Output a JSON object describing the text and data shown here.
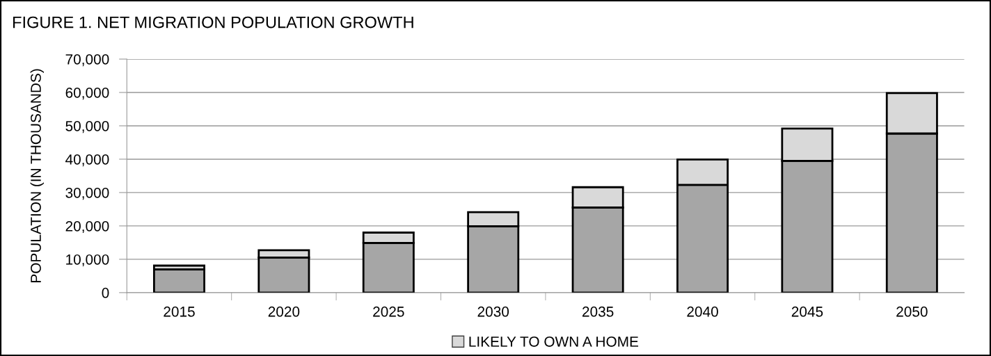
{
  "chart_data": {
    "type": "bar",
    "title": "FIGURE 1. NET MIGRATION POPULATION GROWTH",
    "ylabel": "POPULATION (IN THOUSANDS)",
    "categories": [
      "2015",
      "2020",
      "2025",
      "2030",
      "2035",
      "2040",
      "2045",
      "2050"
    ],
    "stacked": true,
    "series": [
      {
        "color": "#a6a6a6",
        "values": [
          7000,
          10500,
          14900,
          19900,
          25500,
          32300,
          39500,
          47700
        ]
      },
      {
        "name": "LIKELY TO OWN A HOME",
        "color": "#d9d9d9",
        "values": [
          1100,
          2200,
          3100,
          4200,
          6100,
          7600,
          9700,
          12100
        ]
      }
    ],
    "ylim": [
      0,
      70000
    ],
    "yticks": [
      {
        "value": 0,
        "label": "0"
      },
      {
        "value": 10000,
        "label": "10,000"
      },
      {
        "value": 20000,
        "label": "20,000"
      },
      {
        "value": 30000,
        "label": "30,000"
      },
      {
        "value": 40000,
        "label": "40,000"
      },
      {
        "value": 50000,
        "label": "50,000"
      },
      {
        "value": 60000,
        "label": "60,000"
      },
      {
        "value": 70000,
        "label": "70,000"
      }
    ],
    "grid": "y",
    "legend": "bottom"
  }
}
